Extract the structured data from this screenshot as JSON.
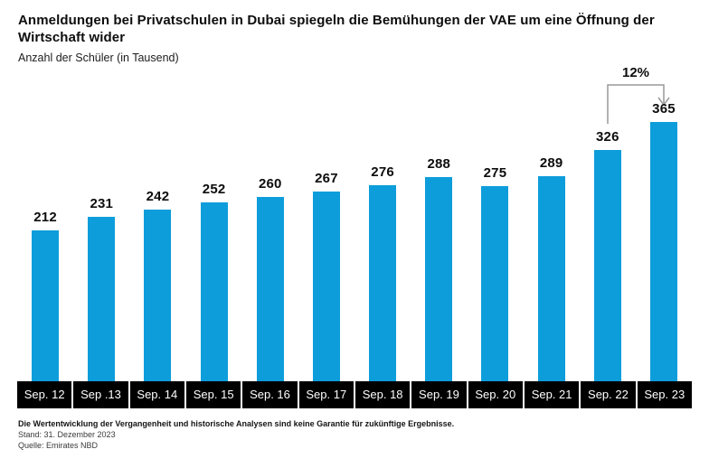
{
  "header": {
    "title": "Anmeldungen bei Privatschulen in Dubai spiegeln die Bemühungen der VAE um eine Öffnung der Wirtschaft wider",
    "subtitle": "Anzahl der Schüler (in Tausend)"
  },
  "annotation": {
    "label": "12%",
    "from_category": "Sep. 22",
    "to_category": "Sep. 23"
  },
  "footer": {
    "disclaimer": "Die Wertentwicklung der Vergangenheit und historische Analysen sind keine Garantie für zukünftige Ergebnisse.",
    "as_of": "Stand: 31. Dezember 2023",
    "source": "Quelle: Emirates NBD"
  },
  "colors": {
    "bar": "#0d9ddb",
    "axis_band": "#000000",
    "axis_text": "#ffffff",
    "bracket": "#999999"
  },
  "chart_data": {
    "type": "bar",
    "categories": [
      "Sep. 12",
      "Sep .13",
      "Sep. 14",
      "Sep. 15",
      "Sep. 16",
      "Sep. 17",
      "Sep. 18",
      "Sep. 19",
      "Sep. 20",
      "Sep. 21",
      "Sep. 22",
      "Sep. 23"
    ],
    "values": [
      212,
      231,
      242,
      252,
      260,
      267,
      276,
      288,
      275,
      289,
      326,
      365
    ],
    "title": "Anmeldungen bei Privatschulen in Dubai spiegeln die Bemühungen der VAE um eine Öffnung der Wirtschaft wider",
    "xlabel": "",
    "ylabel": "Anzahl der Schüler (in Tausend)",
    "ylim": [
      0,
      385
    ],
    "grid": false,
    "legend": false,
    "bar_color": "#0d9ddb",
    "data_labels": true,
    "annotations": [
      {
        "type": "bracket-arrow",
        "label": "12%",
        "from_category": "Sep. 22",
        "to_category": "Sep. 23"
      }
    ]
  }
}
